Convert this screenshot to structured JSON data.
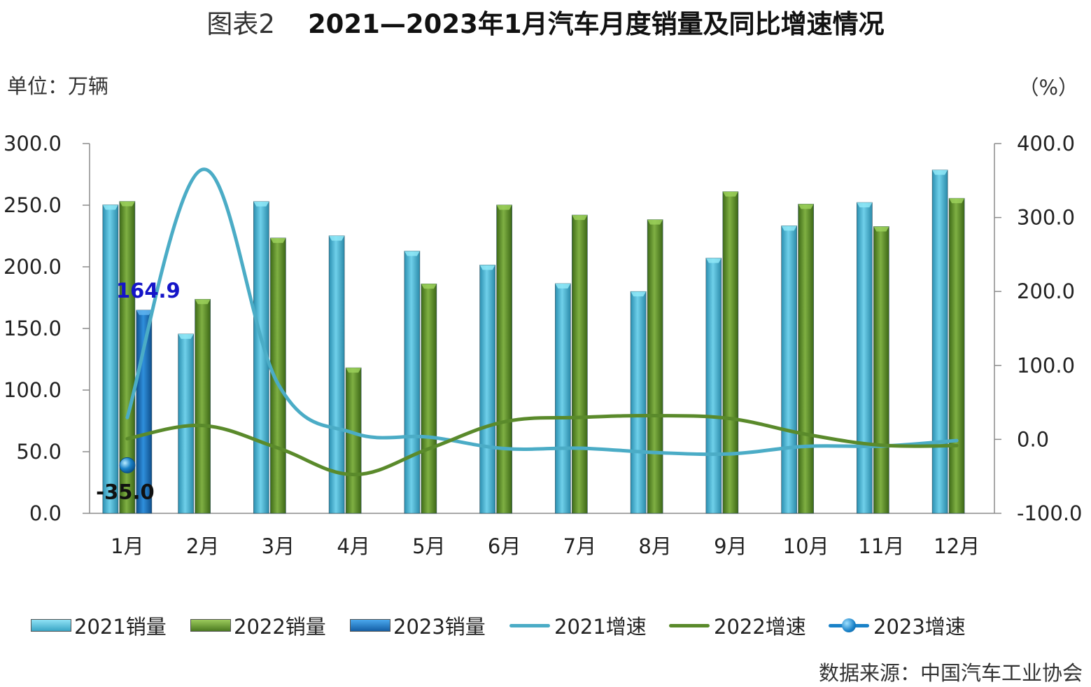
{
  "title_prefix": "图表2",
  "title_main": "2021—2023年1月汽车月度销量及同比增速情况",
  "unit_left": "单位：万辆",
  "unit_right": "（%）",
  "source": "数据来源：中国汽车工业协会",
  "chart_data": {
    "type": "bar",
    "categories": [
      "1月",
      "2月",
      "3月",
      "4月",
      "5月",
      "6月",
      "7月",
      "8月",
      "9月",
      "10月",
      "11月",
      "12月"
    ],
    "bar_series": [
      {
        "name": "2021销量",
        "color": "#4bb8d6",
        "values": [
          250.3,
          145.5,
          253.0,
          225.2,
          212.8,
          201.5,
          186.4,
          180.0,
          207.1,
          233.3,
          252.2,
          278.6
        ]
      },
      {
        "name": "2022销量",
        "color": "#5e8f2e",
        "values": [
          253.1,
          173.7,
          223.4,
          118.1,
          186.2,
          250.2,
          242.0,
          238.3,
          261.0,
          250.9,
          232.7,
          255.6
        ]
      },
      {
        "name": "2023销量",
        "color": "#1f73c0",
        "values": [
          164.9,
          null,
          null,
          null,
          null,
          null,
          null,
          null,
          null,
          null,
          null,
          null
        ]
      }
    ],
    "line_series": [
      {
        "name": "2021增速",
        "color": "#4bacc6",
        "values": [
          29.5,
          365.0,
          74.9,
          8.6,
          3.1,
          -12.4,
          -11.9,
          -17.8,
          -19.6,
          -9.4,
          -9.1,
          -1.6
        ]
      },
      {
        "name": "2022增速",
        "color": "#5a8a2b",
        "values": [
          0.9,
          18.7,
          -11.7,
          -47.6,
          -12.6,
          23.8,
          29.7,
          32.1,
          28.1,
          6.9,
          -7.9,
          -8.4
        ]
      },
      {
        "name": "2023增速",
        "color": "#1a82c8",
        "values": [
          -35.0,
          null,
          null,
          null,
          null,
          null,
          null,
          null,
          null,
          null,
          null,
          null
        ]
      }
    ],
    "y_left": {
      "min": 0,
      "max": 300,
      "step": 50,
      "ticks": [
        "0.0",
        "50.0",
        "100.0",
        "150.0",
        "200.0",
        "250.0",
        "300.0"
      ]
    },
    "y_right": {
      "min": -100,
      "max": 400,
      "step": 100,
      "ticks": [
        "-100.0",
        "0.0",
        "100.0",
        "200.0",
        "300.0",
        "400.0"
      ]
    },
    "data_labels": [
      {
        "text": "164.9",
        "color": "#1515c8"
      },
      {
        "text": "-35.0",
        "color": "#111111"
      }
    ],
    "legend_position": "bottom",
    "grid": false
  }
}
